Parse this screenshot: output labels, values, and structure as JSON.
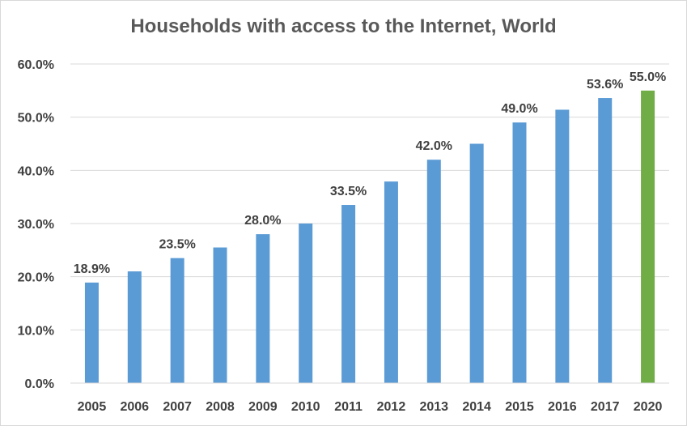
{
  "chart_data": {
    "type": "bar",
    "title": "Households with access to the Internet, World",
    "xlabel": "",
    "ylabel": "",
    "ylim": [
      0,
      60
    ],
    "y_ticks": [
      "0.0%",
      "10.0%",
      "20.0%",
      "30.0%",
      "40.0%",
      "50.0%",
      "60.0%"
    ],
    "y_tick_values": [
      0,
      10,
      20,
      30,
      40,
      50,
      60
    ],
    "grid": true,
    "categories": [
      "2005",
      "2006",
      "2007",
      "2008",
      "2009",
      "2010",
      "2011",
      "2012",
      "2013",
      "2014",
      "2015",
      "2016",
      "2017",
      "2020"
    ],
    "values": [
      18.9,
      21.0,
      23.5,
      25.5,
      28.0,
      30.0,
      33.5,
      37.9,
      42.0,
      45.0,
      49.0,
      51.4,
      53.6,
      55.0
    ],
    "data_labels": [
      "18.9%",
      "",
      "23.5%",
      "",
      "28.0%",
      "",
      "33.5%",
      "",
      "42.0%",
      "",
      "49.0%",
      "",
      "53.6%",
      "55.0%"
    ],
    "bar_colors": [
      "#5b9bd5",
      "#5b9bd5",
      "#5b9bd5",
      "#5b9bd5",
      "#5b9bd5",
      "#5b9bd5",
      "#5b9bd5",
      "#5b9bd5",
      "#5b9bd5",
      "#5b9bd5",
      "#5b9bd5",
      "#5b9bd5",
      "#5b9bd5",
      "#70ad47"
    ],
    "gridline_color": "#d9d9d9"
  }
}
